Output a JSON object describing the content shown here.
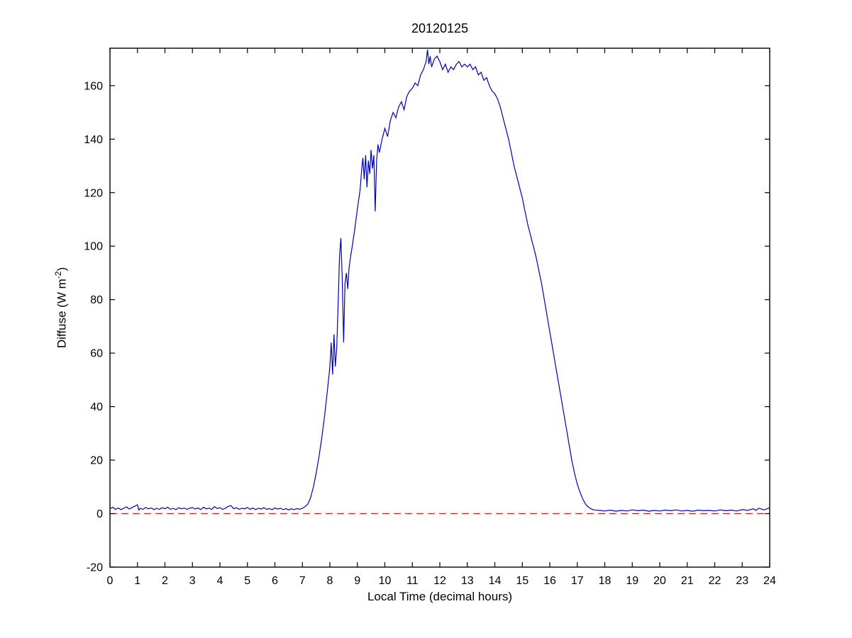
{
  "figure": {
    "background": "#ffffff",
    "axes_color": "#000000"
  },
  "chart_data": {
    "type": "line",
    "title": "20120125",
    "xlabel": "Local Time (decimal hours)",
    "ylabel": "Diffuse (W m^-2)",
    "ylabel_parts": {
      "prefix": "Diffuse (W m",
      "sup": "-2",
      "suffix": ")"
    },
    "xlim": [
      0,
      24
    ],
    "ylim": [
      -20,
      174
    ],
    "xticks": [
      0,
      1,
      2,
      3,
      4,
      5,
      6,
      7,
      8,
      9,
      10,
      11,
      12,
      13,
      14,
      15,
      16,
      17,
      18,
      19,
      20,
      21,
      22,
      23,
      24
    ],
    "yticks": [
      -20,
      0,
      20,
      40,
      60,
      80,
      100,
      120,
      140,
      160
    ],
    "grid": false,
    "legend": null,
    "series": [
      {
        "name": "diffuse-irradiance",
        "color": "#0000bb",
        "style": "solid",
        "width": 1.2,
        "points": [
          [
            0,
            1.8
          ],
          [
            0.1,
            2.4
          ],
          [
            0.2,
            1.6
          ],
          [
            0.3,
            2.1
          ],
          [
            0.4,
            1.5
          ],
          [
            0.5,
            2.0
          ],
          [
            0.6,
            2.5
          ],
          [
            0.7,
            1.7
          ],
          [
            0.8,
            2.2
          ],
          [
            0.9,
            2.8
          ],
          [
            1.0,
            3.3
          ],
          [
            1.05,
            1.3
          ],
          [
            1.1,
            2.0
          ],
          [
            1.2,
            1.6
          ],
          [
            1.3,
            2.3
          ],
          [
            1.4,
            1.8
          ],
          [
            1.5,
            2.1
          ],
          [
            1.6,
            1.5
          ],
          [
            1.7,
            2.0
          ],
          [
            1.8,
            1.6
          ],
          [
            1.9,
            2.2
          ],
          [
            2.0,
            1.8
          ],
          [
            2.1,
            2.4
          ],
          [
            2.2,
            1.6
          ],
          [
            2.3,
            2.0
          ],
          [
            2.4,
            1.5
          ],
          [
            2.5,
            2.2
          ],
          [
            2.6,
            1.8
          ],
          [
            2.7,
            2.1
          ],
          [
            2.8,
            1.6
          ],
          [
            2.9,
            2.0
          ],
          [
            3.0,
            2.3
          ],
          [
            3.1,
            1.7
          ],
          [
            3.2,
            2.1
          ],
          [
            3.3,
            1.5
          ],
          [
            3.4,
            2.4
          ],
          [
            3.5,
            1.8
          ],
          [
            3.6,
            2.0
          ],
          [
            3.7,
            1.6
          ],
          [
            3.8,
            2.6
          ],
          [
            3.9,
            1.9
          ],
          [
            4.0,
            2.2
          ],
          [
            4.1,
            1.6
          ],
          [
            4.2,
            2.0
          ],
          [
            4.3,
            2.7
          ],
          [
            4.4,
            3.0
          ],
          [
            4.5,
            1.8
          ],
          [
            4.6,
            2.2
          ],
          [
            4.7,
            1.6
          ],
          [
            4.8,
            2.0
          ],
          [
            4.9,
            1.8
          ],
          [
            5.0,
            2.3
          ],
          [
            5.1,
            1.6
          ],
          [
            5.2,
            2.1
          ],
          [
            5.3,
            1.5
          ],
          [
            5.4,
            2.0
          ],
          [
            5.5,
            1.7
          ],
          [
            5.6,
            2.2
          ],
          [
            5.7,
            1.6
          ],
          [
            5.8,
            1.9
          ],
          [
            5.9,
            1.5
          ],
          [
            6.0,
            2.1
          ],
          [
            6.1,
            1.7
          ],
          [
            6.2,
            2.0
          ],
          [
            6.3,
            1.5
          ],
          [
            6.4,
            1.9
          ],
          [
            6.5,
            1.4
          ],
          [
            6.6,
            1.8
          ],
          [
            6.7,
            1.5
          ],
          [
            6.8,
            1.9
          ],
          [
            6.9,
            1.6
          ],
          [
            7.0,
            2.0
          ],
          [
            7.1,
            2.6
          ],
          [
            7.2,
            3.6
          ],
          [
            7.3,
            6
          ],
          [
            7.4,
            10
          ],
          [
            7.5,
            15
          ],
          [
            7.6,
            21
          ],
          [
            7.7,
            28
          ],
          [
            7.8,
            36
          ],
          [
            7.9,
            45
          ],
          [
            7.95,
            50
          ],
          [
            8.0,
            55
          ],
          [
            8.05,
            64
          ],
          [
            8.1,
            52
          ],
          [
            8.15,
            67
          ],
          [
            8.2,
            55
          ],
          [
            8.25,
            62
          ],
          [
            8.3,
            78
          ],
          [
            8.35,
            96
          ],
          [
            8.4,
            103
          ],
          [
            8.45,
            88
          ],
          [
            8.5,
            64
          ],
          [
            8.55,
            86
          ],
          [
            8.6,
            90
          ],
          [
            8.65,
            84
          ],
          [
            8.7,
            92
          ],
          [
            8.75,
            96
          ],
          [
            8.8,
            99
          ],
          [
            8.9,
            106
          ],
          [
            9.0,
            114
          ],
          [
            9.1,
            121
          ],
          [
            9.15,
            128
          ],
          [
            9.2,
            133
          ],
          [
            9.25,
            125
          ],
          [
            9.3,
            134
          ],
          [
            9.35,
            122
          ],
          [
            9.4,
            132
          ],
          [
            9.45,
            127
          ],
          [
            9.5,
            136
          ],
          [
            9.55,
            129
          ],
          [
            9.6,
            134
          ],
          [
            9.65,
            113
          ],
          [
            9.7,
            132
          ],
          [
            9.75,
            138
          ],
          [
            9.8,
            135
          ],
          [
            9.9,
            140
          ],
          [
            10.0,
            144
          ],
          [
            10.1,
            141
          ],
          [
            10.2,
            147
          ],
          [
            10.3,
            150
          ],
          [
            10.4,
            148
          ],
          [
            10.5,
            152
          ],
          [
            10.6,
            154
          ],
          [
            10.7,
            151
          ],
          [
            10.8,
            156
          ],
          [
            10.9,
            158
          ],
          [
            11.0,
            159
          ],
          [
            11.1,
            161
          ],
          [
            11.2,
            160
          ],
          [
            11.3,
            164
          ],
          [
            11.4,
            166
          ],
          [
            11.5,
            169
          ],
          [
            11.55,
            173.5
          ],
          [
            11.6,
            168
          ],
          [
            11.65,
            171
          ],
          [
            11.7,
            167
          ],
          [
            11.8,
            170
          ],
          [
            11.9,
            171
          ],
          [
            12.0,
            169
          ],
          [
            12.1,
            166
          ],
          [
            12.2,
            168
          ],
          [
            12.3,
            165
          ],
          [
            12.4,
            167
          ],
          [
            12.5,
            166
          ],
          [
            12.6,
            168
          ],
          [
            12.7,
            169
          ],
          [
            12.8,
            167
          ],
          [
            12.9,
            168
          ],
          [
            13.0,
            167
          ],
          [
            13.1,
            168
          ],
          [
            13.2,
            166
          ],
          [
            13.3,
            167
          ],
          [
            13.4,
            164
          ],
          [
            13.5,
            165
          ],
          [
            13.6,
            162
          ],
          [
            13.7,
            163
          ],
          [
            13.8,
            160
          ],
          [
            13.9,
            158
          ],
          [
            14.0,
            157
          ],
          [
            14.1,
            155
          ],
          [
            14.2,
            152
          ],
          [
            14.3,
            148
          ],
          [
            14.4,
            144
          ],
          [
            14.5,
            140
          ],
          [
            14.6,
            135
          ],
          [
            14.7,
            130
          ],
          [
            14.8,
            126
          ],
          [
            14.9,
            122
          ],
          [
            15.0,
            118
          ],
          [
            15.1,
            113
          ],
          [
            15.2,
            108
          ],
          [
            15.3,
            104
          ],
          [
            15.4,
            100
          ],
          [
            15.5,
            96
          ],
          [
            15.6,
            91
          ],
          [
            15.7,
            86
          ],
          [
            15.8,
            80
          ],
          [
            15.9,
            74
          ],
          [
            16.0,
            68
          ],
          [
            16.1,
            62
          ],
          [
            16.2,
            56
          ],
          [
            16.3,
            50
          ],
          [
            16.4,
            44
          ],
          [
            16.5,
            38
          ],
          [
            16.6,
            32
          ],
          [
            16.7,
            26
          ],
          [
            16.8,
            20
          ],
          [
            16.9,
            15
          ],
          [
            17.0,
            11
          ],
          [
            17.1,
            8
          ],
          [
            17.2,
            5.5
          ],
          [
            17.3,
            3.5
          ],
          [
            17.4,
            2.5
          ],
          [
            17.5,
            1.8
          ],
          [
            17.6,
            1.4
          ],
          [
            17.8,
            1.2
          ],
          [
            18.0,
            1.0
          ],
          [
            18.2,
            1.3
          ],
          [
            18.4,
            0.9
          ],
          [
            18.6,
            1.2
          ],
          [
            18.8,
            1.0
          ],
          [
            19.0,
            1.4
          ],
          [
            19.2,
            1.1
          ],
          [
            19.4,
            1.3
          ],
          [
            19.6,
            0.9
          ],
          [
            19.8,
            1.2
          ],
          [
            20.0,
            1.0
          ],
          [
            20.2,
            1.3
          ],
          [
            20.4,
            1.1
          ],
          [
            20.6,
            1.4
          ],
          [
            20.8,
            1.0
          ],
          [
            21.0,
            1.2
          ],
          [
            21.2,
            0.9
          ],
          [
            21.4,
            1.3
          ],
          [
            21.6,
            1.1
          ],
          [
            21.8,
            1.2
          ],
          [
            22.0,
            1.0
          ],
          [
            22.2,
            1.4
          ],
          [
            22.4,
            1.1
          ],
          [
            22.6,
            1.3
          ],
          [
            22.8,
            1.0
          ],
          [
            23.0,
            1.5
          ],
          [
            23.2,
            1.2
          ],
          [
            23.4,
            1.8
          ],
          [
            23.5,
            1.2
          ],
          [
            23.6,
            2.0
          ],
          [
            23.8,
            1.4
          ],
          [
            24.0,
            2.2
          ]
        ]
      },
      {
        "name": "zero-reference",
        "color": "#cc2222",
        "style": "dashed",
        "width": 1.2,
        "points": [
          [
            0,
            0
          ],
          [
            24,
            0
          ]
        ]
      }
    ]
  }
}
